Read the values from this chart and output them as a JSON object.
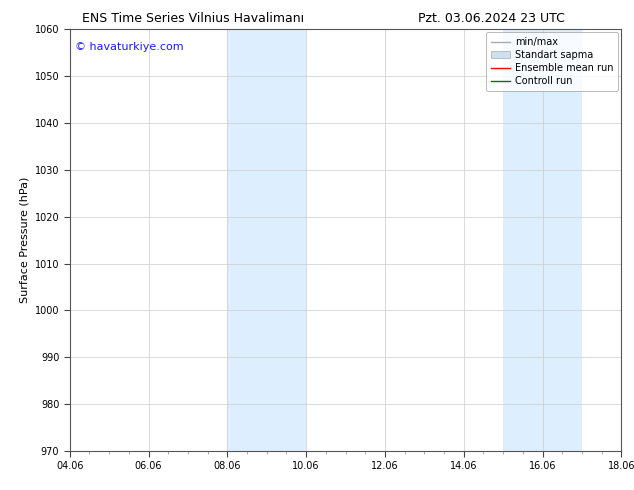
{
  "title_left": "ENS Time Series Vilnius Havalimanı",
  "title_right": "Pzt. 03.06.2024 23 UTC",
  "ylabel": "Surface Pressure (hPa)",
  "xlabel_ticks": [
    "04.06",
    "06.06",
    "08.06",
    "10.06",
    "12.06",
    "14.06",
    "16.06",
    "18.06"
  ],
  "xtick_positions": [
    0,
    2,
    4,
    6,
    8,
    10,
    12,
    14
  ],
  "ylim": [
    970,
    1060
  ],
  "yticks": [
    970,
    980,
    990,
    1000,
    1010,
    1020,
    1030,
    1040,
    1050,
    1060
  ],
  "xlim": [
    0,
    14
  ],
  "background_color": "#ffffff",
  "plot_bg_color": "#ffffff",
  "watermark_text": "© havaturkiye.com",
  "watermark_color": "#1a1aff",
  "shaded_regions": [
    {
      "xmin": 4.0,
      "xmax": 6.0,
      "color": "#ddeeff"
    },
    {
      "xmin": 11.0,
      "xmax": 13.0,
      "color": "#ddeeff"
    }
  ],
  "legend_entries": [
    {
      "label": "min/max",
      "color": "#aaaaaa",
      "lw": 1.0,
      "ls": "-",
      "type": "line"
    },
    {
      "label": "Standart sapma",
      "color": "#cce0f0",
      "lw": 8,
      "ls": "-",
      "type": "patch"
    },
    {
      "label": "Ensemble mean run",
      "color": "#ff0000",
      "lw": 1.0,
      "ls": "-",
      "type": "line"
    },
    {
      "label": "Controll run",
      "color": "#007700",
      "lw": 1.0,
      "ls": "-",
      "type": "line"
    }
  ],
  "grid_color": "#cccccc",
  "grid_linewidth": 0.5,
  "tick_fontsize": 7,
  "title_fontsize": 9,
  "ylabel_fontsize": 8,
  "watermark_fontsize": 8,
  "legend_fontsize": 7
}
